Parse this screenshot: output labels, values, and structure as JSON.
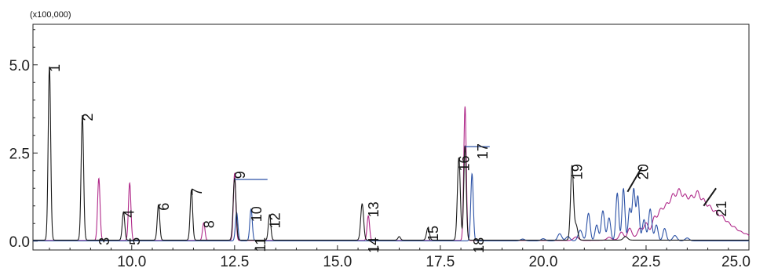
{
  "chart_data": {
    "type": "line",
    "scale_note": "(x100,000)",
    "xlim": [
      7.6,
      25.0
    ],
    "ylim": [
      -0.25,
      6.15
    ],
    "x_ticks": [
      10.0,
      12.5,
      15.0,
      17.5,
      20.0,
      22.5,
      25.0
    ],
    "x_tick_labels": [
      "10.0",
      "12.5",
      "15.0",
      "17.5",
      "20.0",
      "22.5",
      "25.0"
    ],
    "y_ticks": [
      0.0,
      2.5,
      5.0
    ],
    "y_tick_labels": [
      "0.0",
      "2.5",
      "5.0"
    ],
    "colors": {
      "black": "#1a1a1a",
      "magenta": "#b02a8a",
      "blue": "#2c52a6"
    },
    "series": [
      {
        "color": "black",
        "baseline": 0.03,
        "peaks": [
          [
            8.0,
            4.93,
            0.03
          ],
          [
            8.8,
            3.54,
            0.03
          ],
          [
            9.8,
            0.8,
            0.03
          ],
          [
            10.65,
            1.0,
            0.03
          ],
          [
            11.45,
            1.42,
            0.03
          ],
          [
            12.5,
            1.75,
            0.035
          ],
          [
            13.35,
            0.72,
            0.03
          ],
          [
            15.6,
            1.03,
            0.035
          ],
          [
            16.5,
            0.1,
            0.03
          ],
          [
            17.2,
            0.35,
            0.035
          ],
          [
            17.95,
            2.34,
            0.035
          ],
          [
            18.1,
            2.68,
            0.03
          ],
          [
            20.7,
            2.1,
            0.035
          ],
          [
            20.8,
            0.42,
            0.04
          ],
          [
            22.0,
            0.1,
            0.05
          ]
        ]
      },
      {
        "color": "magenta",
        "baseline": 0.02,
        "peaks": [
          [
            9.2,
            1.76,
            0.03
          ],
          [
            9.95,
            1.63,
            0.03
          ],
          [
            11.75,
            0.5,
            0.03
          ],
          [
            12.5,
            1.9,
            0.03
          ],
          [
            15.75,
            0.7,
            0.03
          ],
          [
            18.1,
            3.8,
            0.03
          ],
          [
            20.8,
            0.1,
            0.06
          ],
          [
            21.6,
            0.08,
            0.05
          ],
          [
            21.9,
            0.2,
            0.05
          ],
          [
            22.1,
            0.28,
            0.05
          ],
          [
            22.35,
            0.22,
            0.05
          ],
          [
            22.5,
            0.32,
            0.05
          ],
          [
            22.7,
            0.4,
            0.05
          ],
          [
            22.85,
            0.55,
            0.06
          ],
          [
            23.0,
            0.62,
            0.06
          ],
          [
            23.15,
            0.82,
            0.06
          ],
          [
            23.3,
            0.92,
            0.06
          ],
          [
            23.45,
            0.75,
            0.06
          ],
          [
            23.6,
            0.72,
            0.06
          ],
          [
            23.75,
            0.88,
            0.06
          ],
          [
            23.9,
            0.7,
            0.06
          ],
          [
            24.05,
            0.58,
            0.06
          ],
          [
            24.2,
            0.5,
            0.06
          ],
          [
            24.35,
            0.44,
            0.06
          ],
          [
            24.5,
            0.32,
            0.06
          ],
          [
            24.65,
            0.24,
            0.06
          ],
          [
            24.8,
            0.16,
            0.06
          ],
          [
            24.95,
            0.12,
            0.06
          ]
        ],
        "humps": [
          [
            23.5,
            0.5,
            0.7
          ]
        ]
      },
      {
        "color": "blue",
        "baseline": 0.01,
        "peaks": [
          [
            12.55,
            0.8,
            0.03
          ],
          [
            12.9,
            0.9,
            0.03
          ],
          [
            18.27,
            1.9,
            0.03
          ],
          [
            19.5,
            0.05,
            0.05
          ],
          [
            20.0,
            0.06,
            0.05
          ],
          [
            20.4,
            0.2,
            0.05
          ],
          [
            20.6,
            0.12,
            0.05
          ],
          [
            20.9,
            0.3,
            0.05
          ],
          [
            21.1,
            0.78,
            0.04
          ],
          [
            21.3,
            0.45,
            0.04
          ],
          [
            21.45,
            0.85,
            0.04
          ],
          [
            21.6,
            0.65,
            0.04
          ],
          [
            21.8,
            1.35,
            0.035
          ],
          [
            21.95,
            1.48,
            0.035
          ],
          [
            22.1,
            0.9,
            0.035
          ],
          [
            22.2,
            1.45,
            0.035
          ],
          [
            22.3,
            1.25,
            0.035
          ],
          [
            22.45,
            0.6,
            0.04
          ],
          [
            22.6,
            0.9,
            0.04
          ],
          [
            22.75,
            0.45,
            0.04
          ],
          [
            22.95,
            0.35,
            0.04
          ],
          [
            23.2,
            0.15,
            0.05
          ],
          [
            23.5,
            0.08,
            0.05
          ]
        ]
      }
    ],
    "peak_labels": [
      {
        "text": "1",
        "x": 8.0,
        "y": 4.93
      },
      {
        "text": "2",
        "x": 8.8,
        "y": 3.54
      },
      {
        "text": "3",
        "x": 9.2,
        "y": 0.02
      },
      {
        "text": "4",
        "x": 9.8,
        "y": 0.8
      },
      {
        "text": "5",
        "x": 9.95,
        "y": 0.02
      },
      {
        "text": "6",
        "x": 10.65,
        "y": 1.0
      },
      {
        "text": "7",
        "x": 11.45,
        "y": 1.42
      },
      {
        "text": "8",
        "x": 11.75,
        "y": 0.5
      },
      {
        "text": "9",
        "x": 12.5,
        "y": 1.9
      },
      {
        "text": "10",
        "x": 12.9,
        "y": 0.9
      },
      {
        "text": "11",
        "x": 13.0,
        "y": 0.02
      },
      {
        "text": "12",
        "x": 13.35,
        "y": 0.72
      },
      {
        "text": "13",
        "x": 15.75,
        "y": 1.03
      },
      {
        "text": "14",
        "x": 15.75,
        "y": 0.02
      },
      {
        "text": "15",
        "x": 17.2,
        "y": 0.35
      },
      {
        "text": "16",
        "x": 17.95,
        "y": 2.34
      },
      {
        "text": "17",
        "x": 18.4,
        "y": 2.68
      },
      {
        "text": "18",
        "x": 18.3,
        "y": 0.02
      },
      {
        "text": "19",
        "x": 20.7,
        "y": 2.1
      },
      {
        "text": "20",
        "x": 22.3,
        "y": 2.1
      },
      {
        "text": "21",
        "x": 24.2,
        "y": 1.05
      }
    ],
    "markers": [
      {
        "color": "blue",
        "from": [
          12.5,
          1.75
        ],
        "to": [
          13.3,
          1.75
        ]
      },
      {
        "color": "blue",
        "from": [
          18.1,
          2.68
        ],
        "to": [
          18.7,
          2.68
        ]
      },
      {
        "color": "black",
        "from": [
          22.05,
          1.4
        ],
        "to": [
          22.4,
          2.1
        ]
      },
      {
        "color": "black",
        "from": [
          23.9,
          1.0
        ],
        "to": [
          24.2,
          1.5
        ]
      }
    ]
  }
}
